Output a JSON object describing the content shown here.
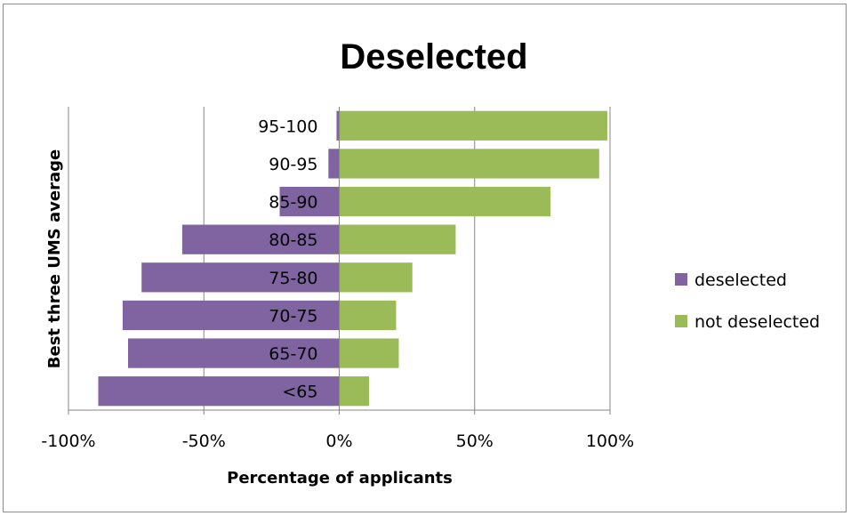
{
  "chart_data": {
    "type": "bar",
    "orientation": "horizontal",
    "stacked": "diverging",
    "title": "Deselected",
    "xlabel": "Percentage of applicants",
    "ylabel": "Best three UMS average",
    "categories": [
      "95-100",
      "90-95",
      "85-90",
      "80-85",
      "75-80",
      "70-75",
      "65-70",
      "<65"
    ],
    "series": [
      {
        "name": "deselected",
        "color": "#8064a2",
        "values": [
          -1,
          -4,
          -22,
          -58,
          -73,
          -80,
          -78,
          -89
        ]
      },
      {
        "name": "not deselected",
        "color": "#9bbb59",
        "values": [
          99,
          96,
          78,
          43,
          27,
          21,
          22,
          11
        ]
      }
    ],
    "xlim": [
      -100,
      100
    ],
    "xticks": [
      -100,
      -50,
      0,
      50,
      100
    ],
    "xtick_labels": [
      "-100%",
      "-50%",
      "0%",
      "50%",
      "100%"
    ],
    "grid": "vertical",
    "legend_position": "right"
  }
}
